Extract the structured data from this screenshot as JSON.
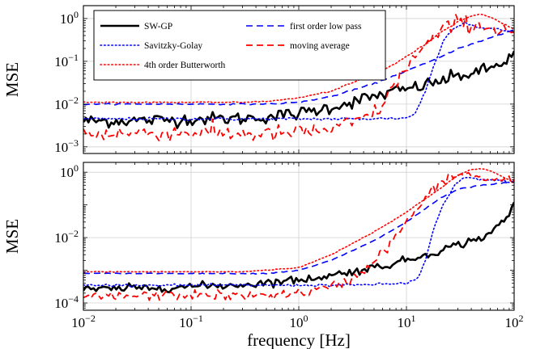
{
  "chart_data": [
    {
      "type": "line",
      "title": "",
      "xlabel": "",
      "ylabel": "MSE",
      "xscale": "log",
      "yscale": "log",
      "xlim": [
        0.01,
        100
      ],
      "ylim": [
        0.0007,
        2
      ],
      "grid": true,
      "legend_position": "top-left",
      "legend_columns": 2,
      "yticks": [
        {
          "value": 0.001,
          "base": "10",
          "exp": "−3"
        },
        {
          "value": 0.01,
          "base": "10",
          "exp": "−2"
        },
        {
          "value": 0.1,
          "base": "10",
          "exp": "−1"
        },
        {
          "value": 1,
          "base": "10",
          "exp": "0"
        }
      ],
      "series": [
        {
          "name": "SW-GP",
          "color": "#000000",
          "dash": "solid",
          "width": 2.6,
          "noise": 0.22,
          "x": [
            0.01,
            0.05,
            0.1,
            0.3,
            0.6,
            1,
            2,
            3,
            5,
            8,
            10,
            15,
            20,
            30,
            50,
            70,
            100
          ],
          "y": [
            0.004,
            0.0042,
            0.0045,
            0.0046,
            0.0052,
            0.006,
            0.0085,
            0.011,
            0.015,
            0.02,
            0.022,
            0.028,
            0.034,
            0.045,
            0.058,
            0.08,
            0.14
          ]
        },
        {
          "name": "Savitzky-Golay",
          "color": "#0000ff",
          "dash": "dotted",
          "width": 1.6,
          "noise": 0.05,
          "x": [
            0.01,
            0.1,
            1,
            3,
            10,
            12,
            15,
            18,
            22,
            28,
            35,
            50,
            70,
            100
          ],
          "y": [
            0.0045,
            0.0045,
            0.0045,
            0.0045,
            0.0047,
            0.006,
            0.02,
            0.08,
            0.3,
            0.65,
            0.8,
            0.6,
            0.55,
            0.5
          ]
        },
        {
          "name": "4th order Butterworth",
          "color": "#ff0000",
          "dash": "dotted",
          "width": 1.6,
          "noise": 0.02,
          "x": [
            0.01,
            0.1,
            0.3,
            0.6,
            1,
            2,
            3,
            5,
            8,
            10,
            15,
            20,
            30,
            40,
            50,
            60,
            80,
            100
          ],
          "y": [
            0.011,
            0.011,
            0.011,
            0.012,
            0.014,
            0.02,
            0.03,
            0.05,
            0.09,
            0.13,
            0.25,
            0.45,
            0.85,
            1.15,
            1.25,
            1.1,
            0.75,
            0.55
          ]
        },
        {
          "name": "first order low pass",
          "color": "#0000ff",
          "dash": "dashed",
          "width": 1.6,
          "noise": 0.02,
          "x": [
            0.01,
            0.1,
            0.5,
            1,
            2,
            5,
            10,
            20,
            30,
            50,
            100
          ],
          "y": [
            0.01,
            0.01,
            0.01,
            0.011,
            0.015,
            0.03,
            0.06,
            0.12,
            0.2,
            0.3,
            0.55
          ]
        },
        {
          "name": "moving average",
          "color": "#ff0000",
          "dash": "dashed",
          "width": 1.8,
          "noise": 0.28,
          "x": [
            0.01,
            0.1,
            0.3,
            0.6,
            1,
            2,
            3,
            4,
            5,
            6,
            8,
            10,
            15,
            20,
            25,
            30,
            40,
            60,
            100
          ],
          "y": [
            0.002,
            0.0022,
            0.002,
            0.002,
            0.0022,
            0.0025,
            0.0035,
            0.0045,
            0.006,
            0.01,
            0.03,
            0.08,
            0.22,
            0.45,
            0.65,
            0.8,
            0.75,
            0.6,
            0.5
          ]
        }
      ]
    },
    {
      "type": "line",
      "title": "",
      "xlabel": "frequency [Hz]",
      "ylabel": "MSE",
      "xscale": "log",
      "yscale": "log",
      "xlim": [
        0.01,
        100
      ],
      "ylim": [
        6e-05,
        2
      ],
      "grid": true,
      "xticks": [
        {
          "value": 0.01,
          "base": "10",
          "exp": "−2"
        },
        {
          "value": 0.1,
          "base": "10",
          "exp": "−1"
        },
        {
          "value": 1,
          "base": "10",
          "exp": "0"
        },
        {
          "value": 10,
          "base": "10",
          "exp": "1"
        },
        {
          "value": 100,
          "base": "10",
          "exp": "2"
        }
      ],
      "yticks": [
        {
          "value": 0.0001,
          "base": "10",
          "exp": "−4"
        },
        {
          "value": 0.01,
          "base": "10",
          "exp": "−2"
        },
        {
          "value": 1,
          "base": "10",
          "exp": "0"
        }
      ],
      "series": [
        {
          "name": "SW-GP",
          "color": "#000000",
          "dash": "solid",
          "width": 2.6,
          "noise": 0.18,
          "x": [
            0.01,
            0.05,
            0.1,
            0.3,
            0.6,
            1,
            2,
            3,
            5,
            10,
            20,
            30,
            50,
            70,
            90,
            100
          ],
          "y": [
            0.00025,
            0.0003,
            0.00032,
            0.00036,
            0.00045,
            0.0005,
            0.0007,
            0.0009,
            0.0012,
            0.002,
            0.004,
            0.006,
            0.01,
            0.02,
            0.05,
            0.12
          ]
        },
        {
          "name": "Savitzky-Golay",
          "color": "#0000ff",
          "dash": "dotted",
          "width": 1.6,
          "noise": 0.05,
          "x": [
            0.01,
            0.1,
            1,
            3,
            10,
            13,
            15,
            18,
            22,
            28,
            35,
            50,
            70,
            100
          ],
          "y": [
            0.00035,
            0.00035,
            0.00035,
            0.00035,
            0.0004,
            0.0006,
            0.002,
            0.02,
            0.1,
            0.4,
            0.7,
            0.6,
            0.55,
            0.5
          ]
        },
        {
          "name": "4th order Butterworth",
          "color": "#ff0000",
          "dash": "dotted",
          "width": 1.6,
          "noise": 0.02,
          "x": [
            0.01,
            0.1,
            0.3,
            1,
            2,
            5,
            10,
            20,
            30,
            40,
            50,
            60,
            80,
            100
          ],
          "y": [
            0.0009,
            0.0009,
            0.0009,
            0.0012,
            0.003,
            0.015,
            0.06,
            0.3,
            0.8,
            1.2,
            1.3,
            1.1,
            0.7,
            0.5
          ]
        },
        {
          "name": "first order low pass",
          "color": "#0000ff",
          "dash": "dashed",
          "width": 1.6,
          "noise": 0.02,
          "x": [
            0.01,
            0.1,
            0.5,
            1,
            2,
            5,
            10,
            20,
            30,
            50,
            100
          ],
          "y": [
            0.0008,
            0.0008,
            0.0008,
            0.001,
            0.002,
            0.008,
            0.03,
            0.15,
            0.3,
            0.4,
            0.5
          ]
        },
        {
          "name": "moving average",
          "color": "#ff0000",
          "dash": "dashed",
          "width": 1.8,
          "noise": 0.22,
          "x": [
            0.01,
            0.1,
            0.3,
            1,
            2,
            3,
            4,
            5,
            7,
            10,
            15,
            20,
            25,
            30,
            40,
            60,
            100
          ],
          "y": [
            0.00015,
            0.00018,
            0.00016,
            0.0002,
            0.0003,
            0.0005,
            0.001,
            0.002,
            0.006,
            0.03,
            0.15,
            0.45,
            0.7,
            0.85,
            0.8,
            0.6,
            0.5
          ]
        }
      ]
    }
  ]
}
